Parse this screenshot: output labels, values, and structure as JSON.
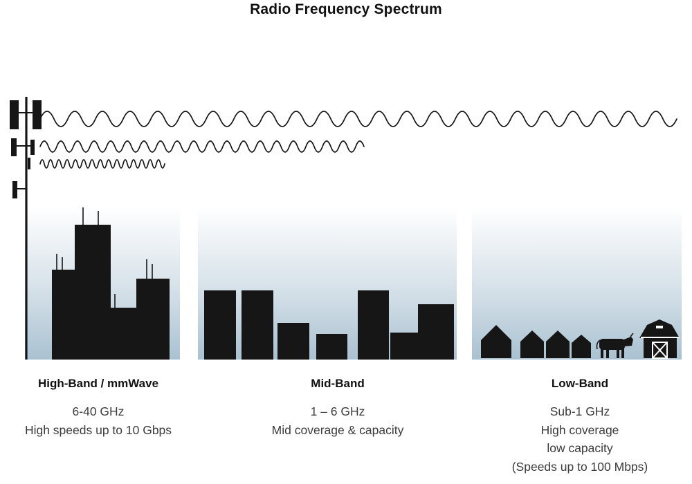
{
  "title": "Radio Frequency Spectrum",
  "bands": [
    {
      "id": "high-band",
      "name": "High-Band / mmWave",
      "lines": [
        "6-40 GHz",
        "High speeds up to 10 Gbps"
      ]
    },
    {
      "id": "mid-band",
      "name": "Mid-Band",
      "lines": [
        "1 – 6 GHz",
        "Mid coverage & capacity"
      ]
    },
    {
      "id": "low-band",
      "name": "Low-Band",
      "lines": [
        "Sub-1 GHz",
        "High coverage",
        "low capacity",
        "(Speeds up to 100 Mbps)"
      ]
    }
  ],
  "icons": [
    "cell-tower-icon",
    "lowband-long-wave",
    "midband-medium-wave",
    "highband-short-wave",
    "city-skyline-icon",
    "midrise-skyline-icon",
    "house-icon",
    "cow-icon",
    "barn-icon"
  ],
  "colors": {
    "silhouette": "#161616",
    "sky_gradient_bottom": "#b3c8d6",
    "background": "#ffffff"
  }
}
